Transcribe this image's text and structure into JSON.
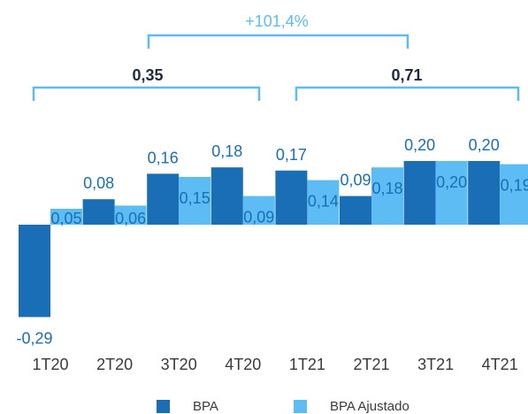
{
  "chart_data": {
    "type": "bar",
    "categories": [
      "1T20",
      "2T20",
      "3T20",
      "4T20",
      "1T21",
      "2T21",
      "3T21",
      "4T21"
    ],
    "series": [
      {
        "name": "BPA",
        "values": [
          -0.29,
          0.08,
          0.16,
          0.18,
          0.17,
          0.09,
          0.2,
          0.2
        ],
        "labels": [
          "-0,29",
          "0,08",
          "0,16",
          "0,18",
          "0,17",
          "0,09",
          "0,20",
          "0,20"
        ]
      },
      {
        "name": "BPA Ajustado",
        "values": [
          0.05,
          0.06,
          0.15,
          0.09,
          0.14,
          0.18,
          0.2,
          0.19
        ],
        "labels": [
          "0,05",
          "0,06",
          "0,15",
          "0,09",
          "0,14",
          "0,18",
          "0,20",
          "0,19"
        ]
      }
    ],
    "annotations": {
      "total_2020": "0,35",
      "total_2021": "0,71",
      "growth": "+101,4%"
    },
    "colors": {
      "bpa": "#1a6eb5",
      "bpa_ajustado": "#5dbcf3",
      "bracket": "#5dbcf3",
      "text": "#1f2a3c",
      "growth_text": "#5dbcf3",
      "label_bpa": "#1a6eb5"
    },
    "legend_position": "bottom",
    "grid": false
  }
}
